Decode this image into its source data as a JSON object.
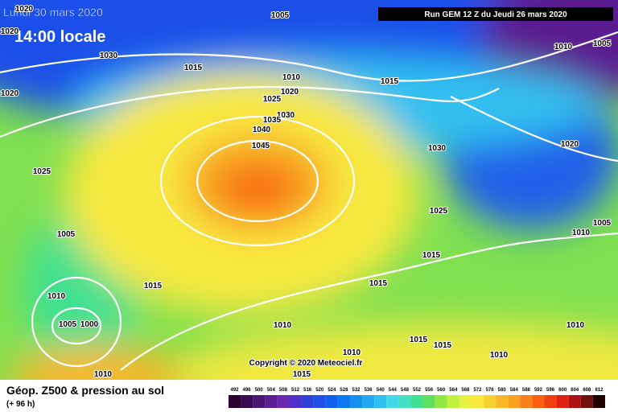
{
  "header": {
    "date": "Lundi 30 mars 2020",
    "time": "14:00 locale",
    "run": "Run GEM 12 Z du Jeudi 26 mars 2020"
  },
  "map": {
    "isobar_labels": [
      1020,
      1005,
      1010,
      1005,
      1020,
      1030,
      1015,
      1010,
      1015,
      1020,
      1020,
      1025,
      1030,
      1035,
      1040,
      1045,
      1030,
      1020,
      1025,
      1025,
      1005,
      1005,
      1010,
      1015,
      1015,
      1015,
      1010,
      1005,
      1000,
      1010,
      1010,
      1015,
      1015,
      1010,
      1010,
      1010,
      1015
    ],
    "copyright": "Copyright © 2020 Meteociel.fr"
  },
  "legend": {
    "title": "Géop. Z500 & pression au sol",
    "subtitle": "(+ 96 h)",
    "scale": [
      492,
      496,
      500,
      504,
      508,
      512,
      516,
      520,
      524,
      528,
      532,
      536,
      540,
      544,
      548,
      552,
      556,
      560,
      564,
      568,
      572,
      576,
      580,
      584,
      588,
      592,
      596,
      600,
      604,
      608,
      612
    ],
    "colors": [
      "#2a0030",
      "#3c0a50",
      "#4a1470",
      "#5a1e90",
      "#6a28b0",
      "#5030c8",
      "#3040d8",
      "#1e50e8",
      "#1060f0",
      "#0a78f0",
      "#1490f0",
      "#20a8f0",
      "#30c0f0",
      "#40d8e8",
      "#40e0c0",
      "#40e090",
      "#60e060",
      "#90e840",
      "#c0f040",
      "#e8f040",
      "#f8e840",
      "#f8d030",
      "#f8b828",
      "#f8a020",
      "#f88018",
      "#f86010",
      "#f04010",
      "#e02010",
      "#b01010",
      "#701010",
      "#200000"
    ]
  }
}
